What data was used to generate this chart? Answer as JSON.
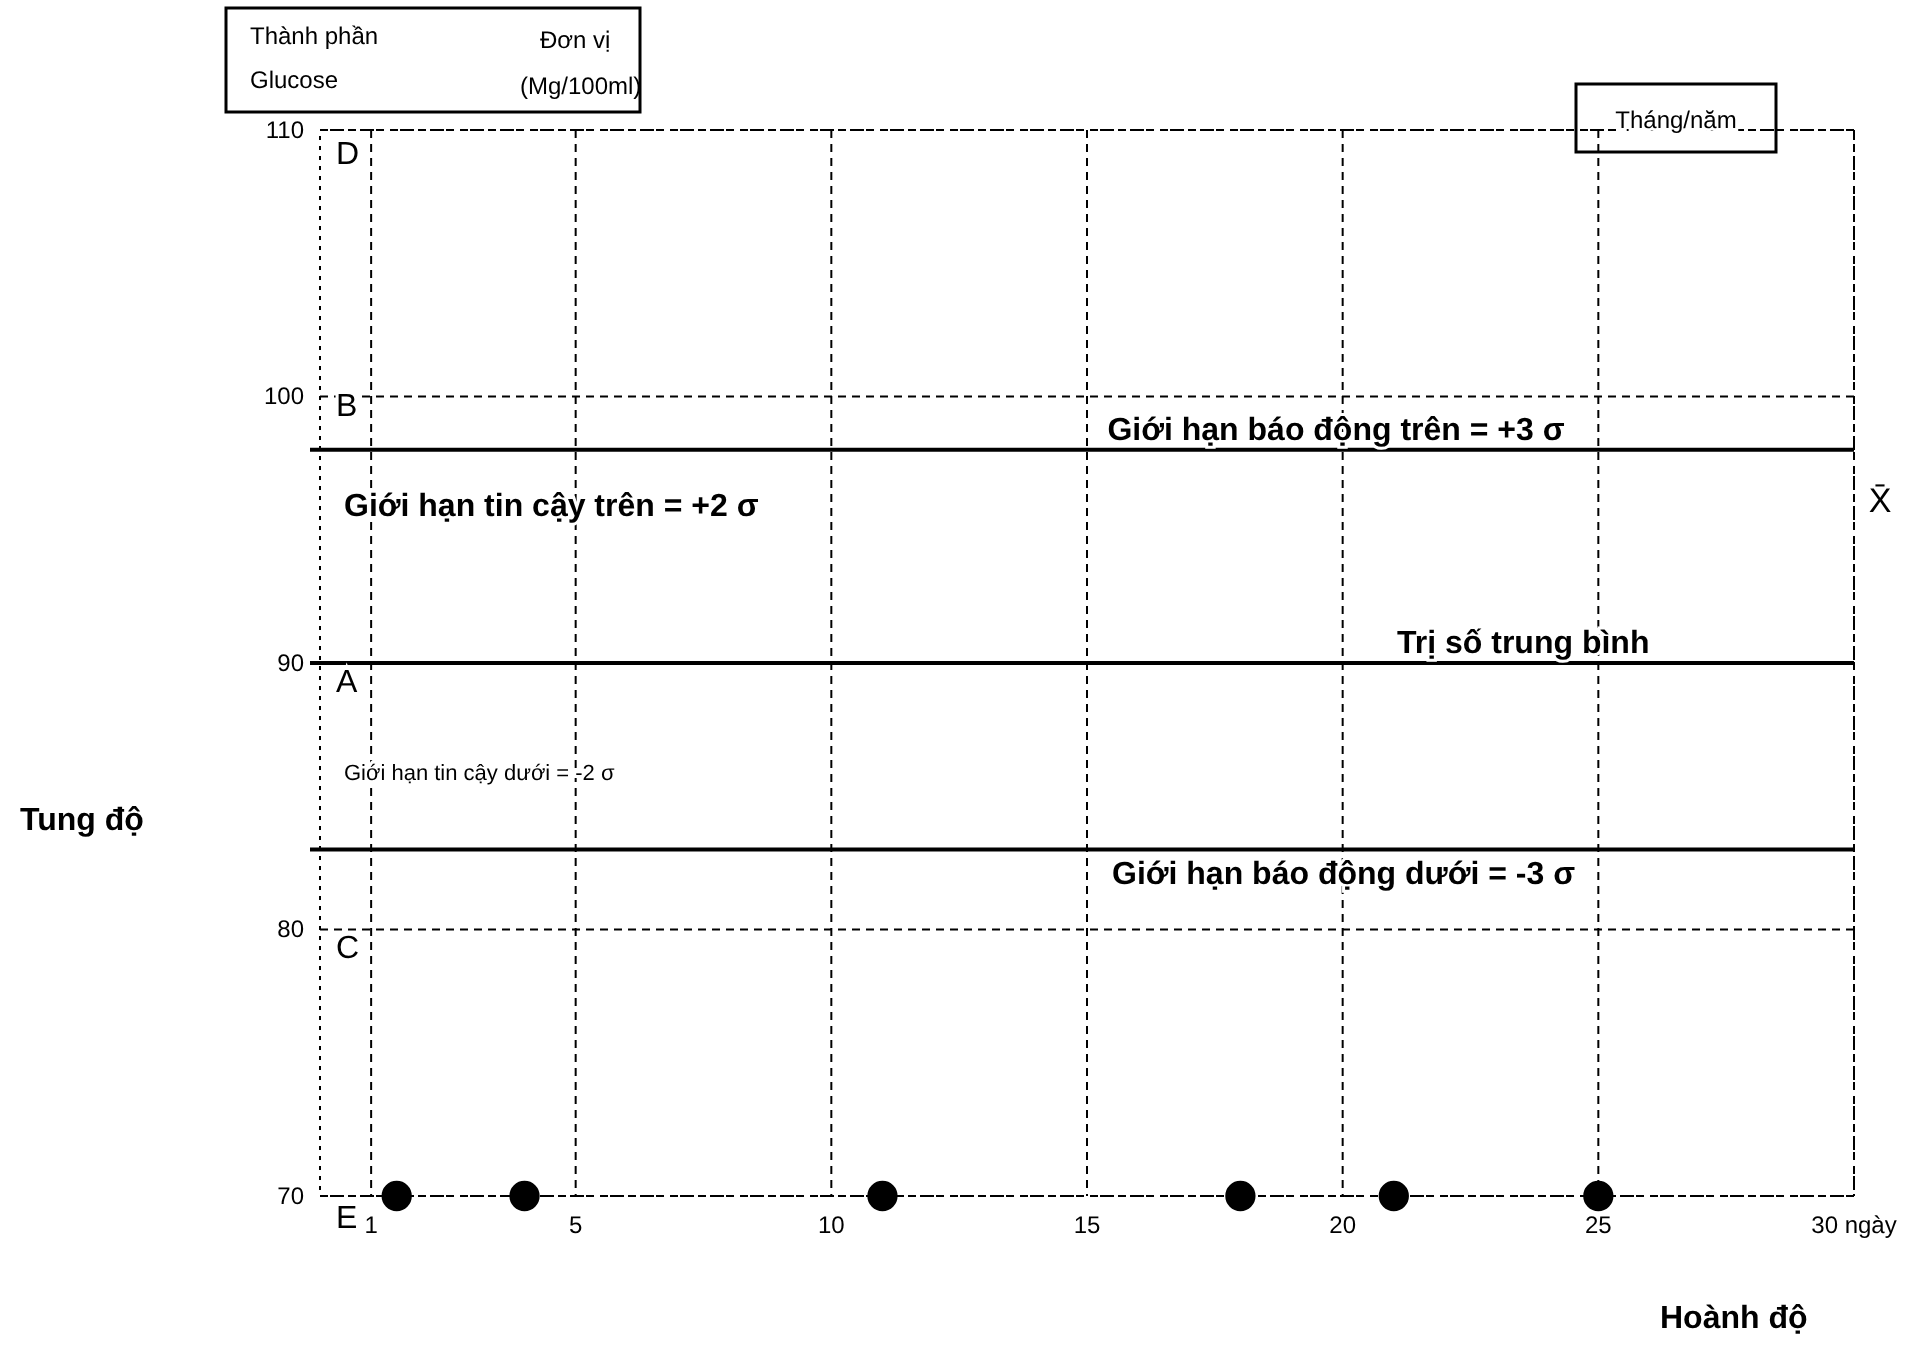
{
  "chart_data": {
    "type": "scatter",
    "xlabel": "Hoành độ",
    "ylabel": "Tung độ",
    "x": [
      1.5,
      4,
      11,
      18,
      21,
      25
    ],
    "series": [
      {
        "color": "#000000",
        "values": [
          70,
          70,
          70,
          70,
          70,
          70
        ]
      }
    ],
    "marker": "circle",
    "xlim": [
      0,
      30
    ],
    "xticks": [
      1,
      5,
      10,
      15,
      20,
      25,
      {
        "value": 30,
        "label": "30 ngày"
      }
    ],
    "ylim": [
      70,
      110
    ],
    "yticks": [
      70,
      80,
      90,
      100,
      110
    ],
    "grid": true,
    "ref_lines": [
      {
        "axis": "y",
        "value": 98,
        "label": "Giới hạn báo động trên = +3 σ",
        "color": "#000000"
      },
      {
        "axis": "y",
        "value": 90,
        "label": "Trị số trung bình",
        "color": "#000000"
      },
      {
        "axis": "y",
        "value": 83,
        "color": "#000000"
      }
    ],
    "annotations": [
      "Thành phần",
      "Đơn vị",
      "Glucose",
      "(Mg/100ml)",
      "Tháng/năm",
      "X̄",
      "D",
      "B",
      "A",
      "C",
      "E",
      "Giới hạn tin cậy trên = +2 σ",
      "Giới hạn tin cậy dưới = -2 σ",
      "Giới hạn báo động dưới = -3 σ"
    ]
  }
}
